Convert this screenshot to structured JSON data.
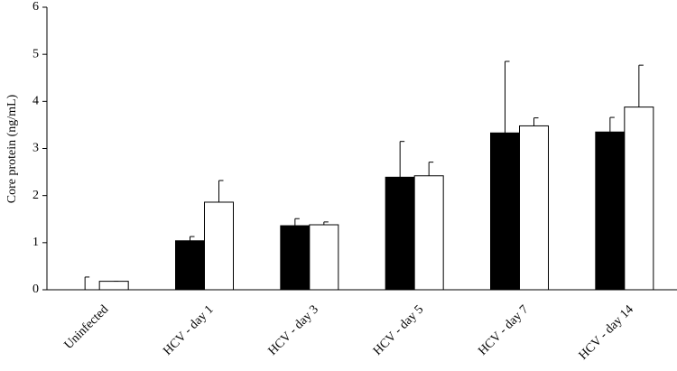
{
  "chart_data": {
    "type": "bar",
    "y_label": "Core protein (ng/mL)",
    "categories": [
      "Uninfected",
      "HCV - day 1",
      "HCV - day 3",
      "HCV - day 5",
      "HCV - day 7",
      "HCV - day 14"
    ],
    "series": [
      {
        "color": "#000000",
        "values": [
          0.0,
          1.04,
          1.36,
          2.39,
          3.33,
          3.35
        ],
        "errors": [
          0.27,
          0.09,
          0.15,
          0.76,
          1.52,
          0.31
        ]
      },
      {
        "color": "#ffffff",
        "values": [
          0.18,
          1.86,
          1.38,
          2.42,
          3.48,
          3.88
        ],
        "errors": [
          0.0,
          0.46,
          0.06,
          0.29,
          0.17,
          0.89
        ]
      }
    ],
    "ylim": [
      0,
      6
    ],
    "yticks": [
      0,
      1,
      2,
      3,
      4,
      5,
      6
    ],
    "grid": false
  }
}
